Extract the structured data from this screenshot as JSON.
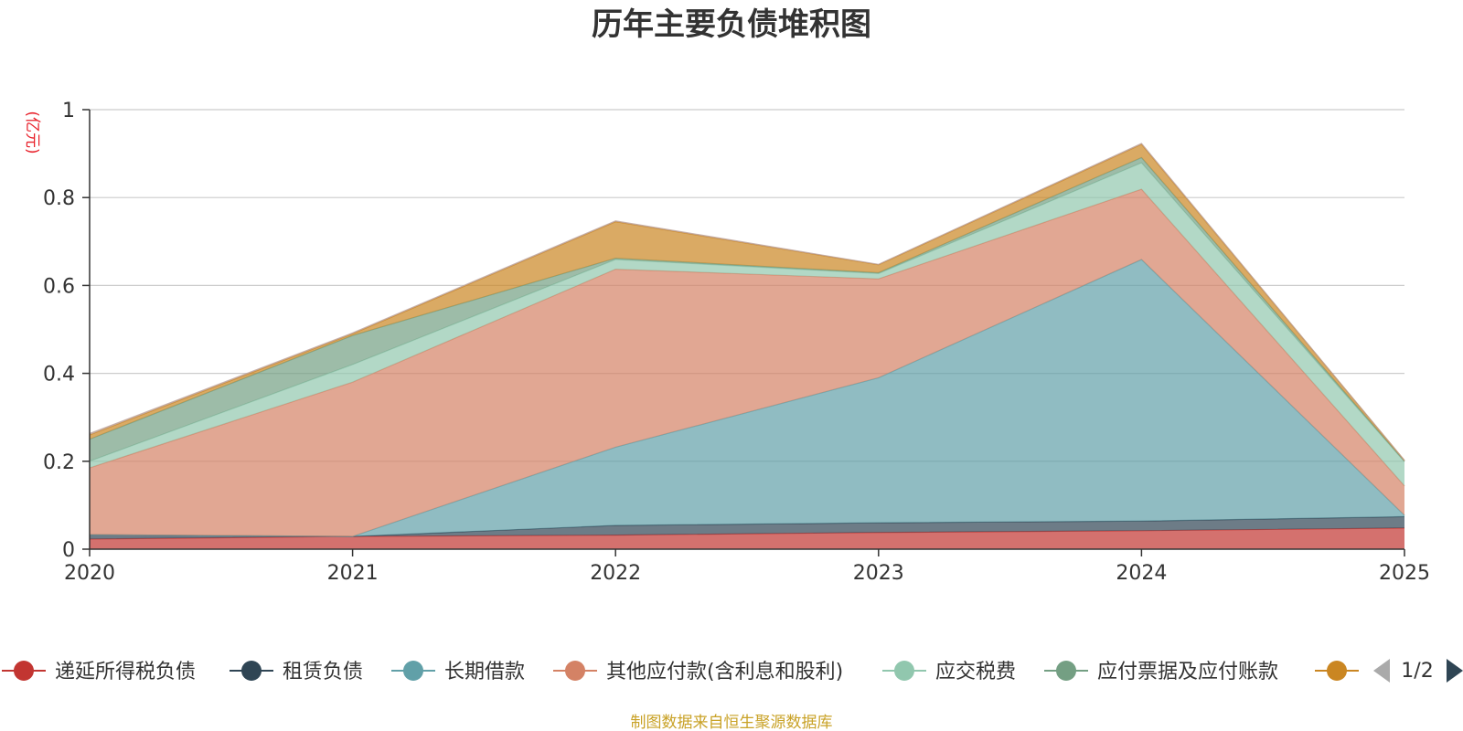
{
  "chart_data": {
    "type": "area",
    "stacked": true,
    "title": "历年主要负债堆积图",
    "unit_label": "(亿元)",
    "x": [
      "2020",
      "2021",
      "2022",
      "2023",
      "2024",
      "2025"
    ],
    "ylim": [
      0,
      1
    ],
    "yticks": [
      "0",
      "0.2",
      "0.4",
      "0.6",
      "0.8",
      "1"
    ],
    "grid": true,
    "series": [
      {
        "name": "递延所得税负债",
        "color": "#c23531",
        "values": [
          0.023,
          0.029,
          0.032,
          0.038,
          0.042,
          0.048
        ]
      },
      {
        "name": "租赁负债",
        "color": "#2f4554",
        "values": [
          0.01,
          0.0,
          0.022,
          0.022,
          0.022,
          0.026
        ]
      },
      {
        "name": "长期借款",
        "color": "#61a0a8",
        "values": [
          0.0,
          0.0,
          0.178,
          0.33,
          0.595,
          0.003
        ]
      },
      {
        "name": "其他应付款(含利息和股利)",
        "color": "#d48265",
        "values": [
          0.152,
          0.351,
          0.405,
          0.225,
          0.16,
          0.067
        ]
      },
      {
        "name": "应交税费",
        "color": "#91c7ae",
        "values": [
          0.015,
          0.04,
          0.022,
          0.012,
          0.06,
          0.055
        ]
      },
      {
        "name": "应付票据及应付账款",
        "color": "#749f83",
        "values": [
          0.05,
          0.066,
          0.003,
          0.002,
          0.012,
          0.001
        ]
      },
      {
        "name": "",
        "color": "#ca8622",
        "values": [
          0.01,
          0.004,
          0.083,
          0.018,
          0.03,
          0.002
        ]
      },
      {
        "name": "",
        "color": "#bda29a",
        "values": [
          0.003,
          0.002,
          0.002,
          0.001,
          0.002,
          0.0
        ]
      }
    ],
    "legend_position": "bottom",
    "legend_page": "1/2"
  },
  "source_note": "制图数据来自恒生聚源数据库"
}
